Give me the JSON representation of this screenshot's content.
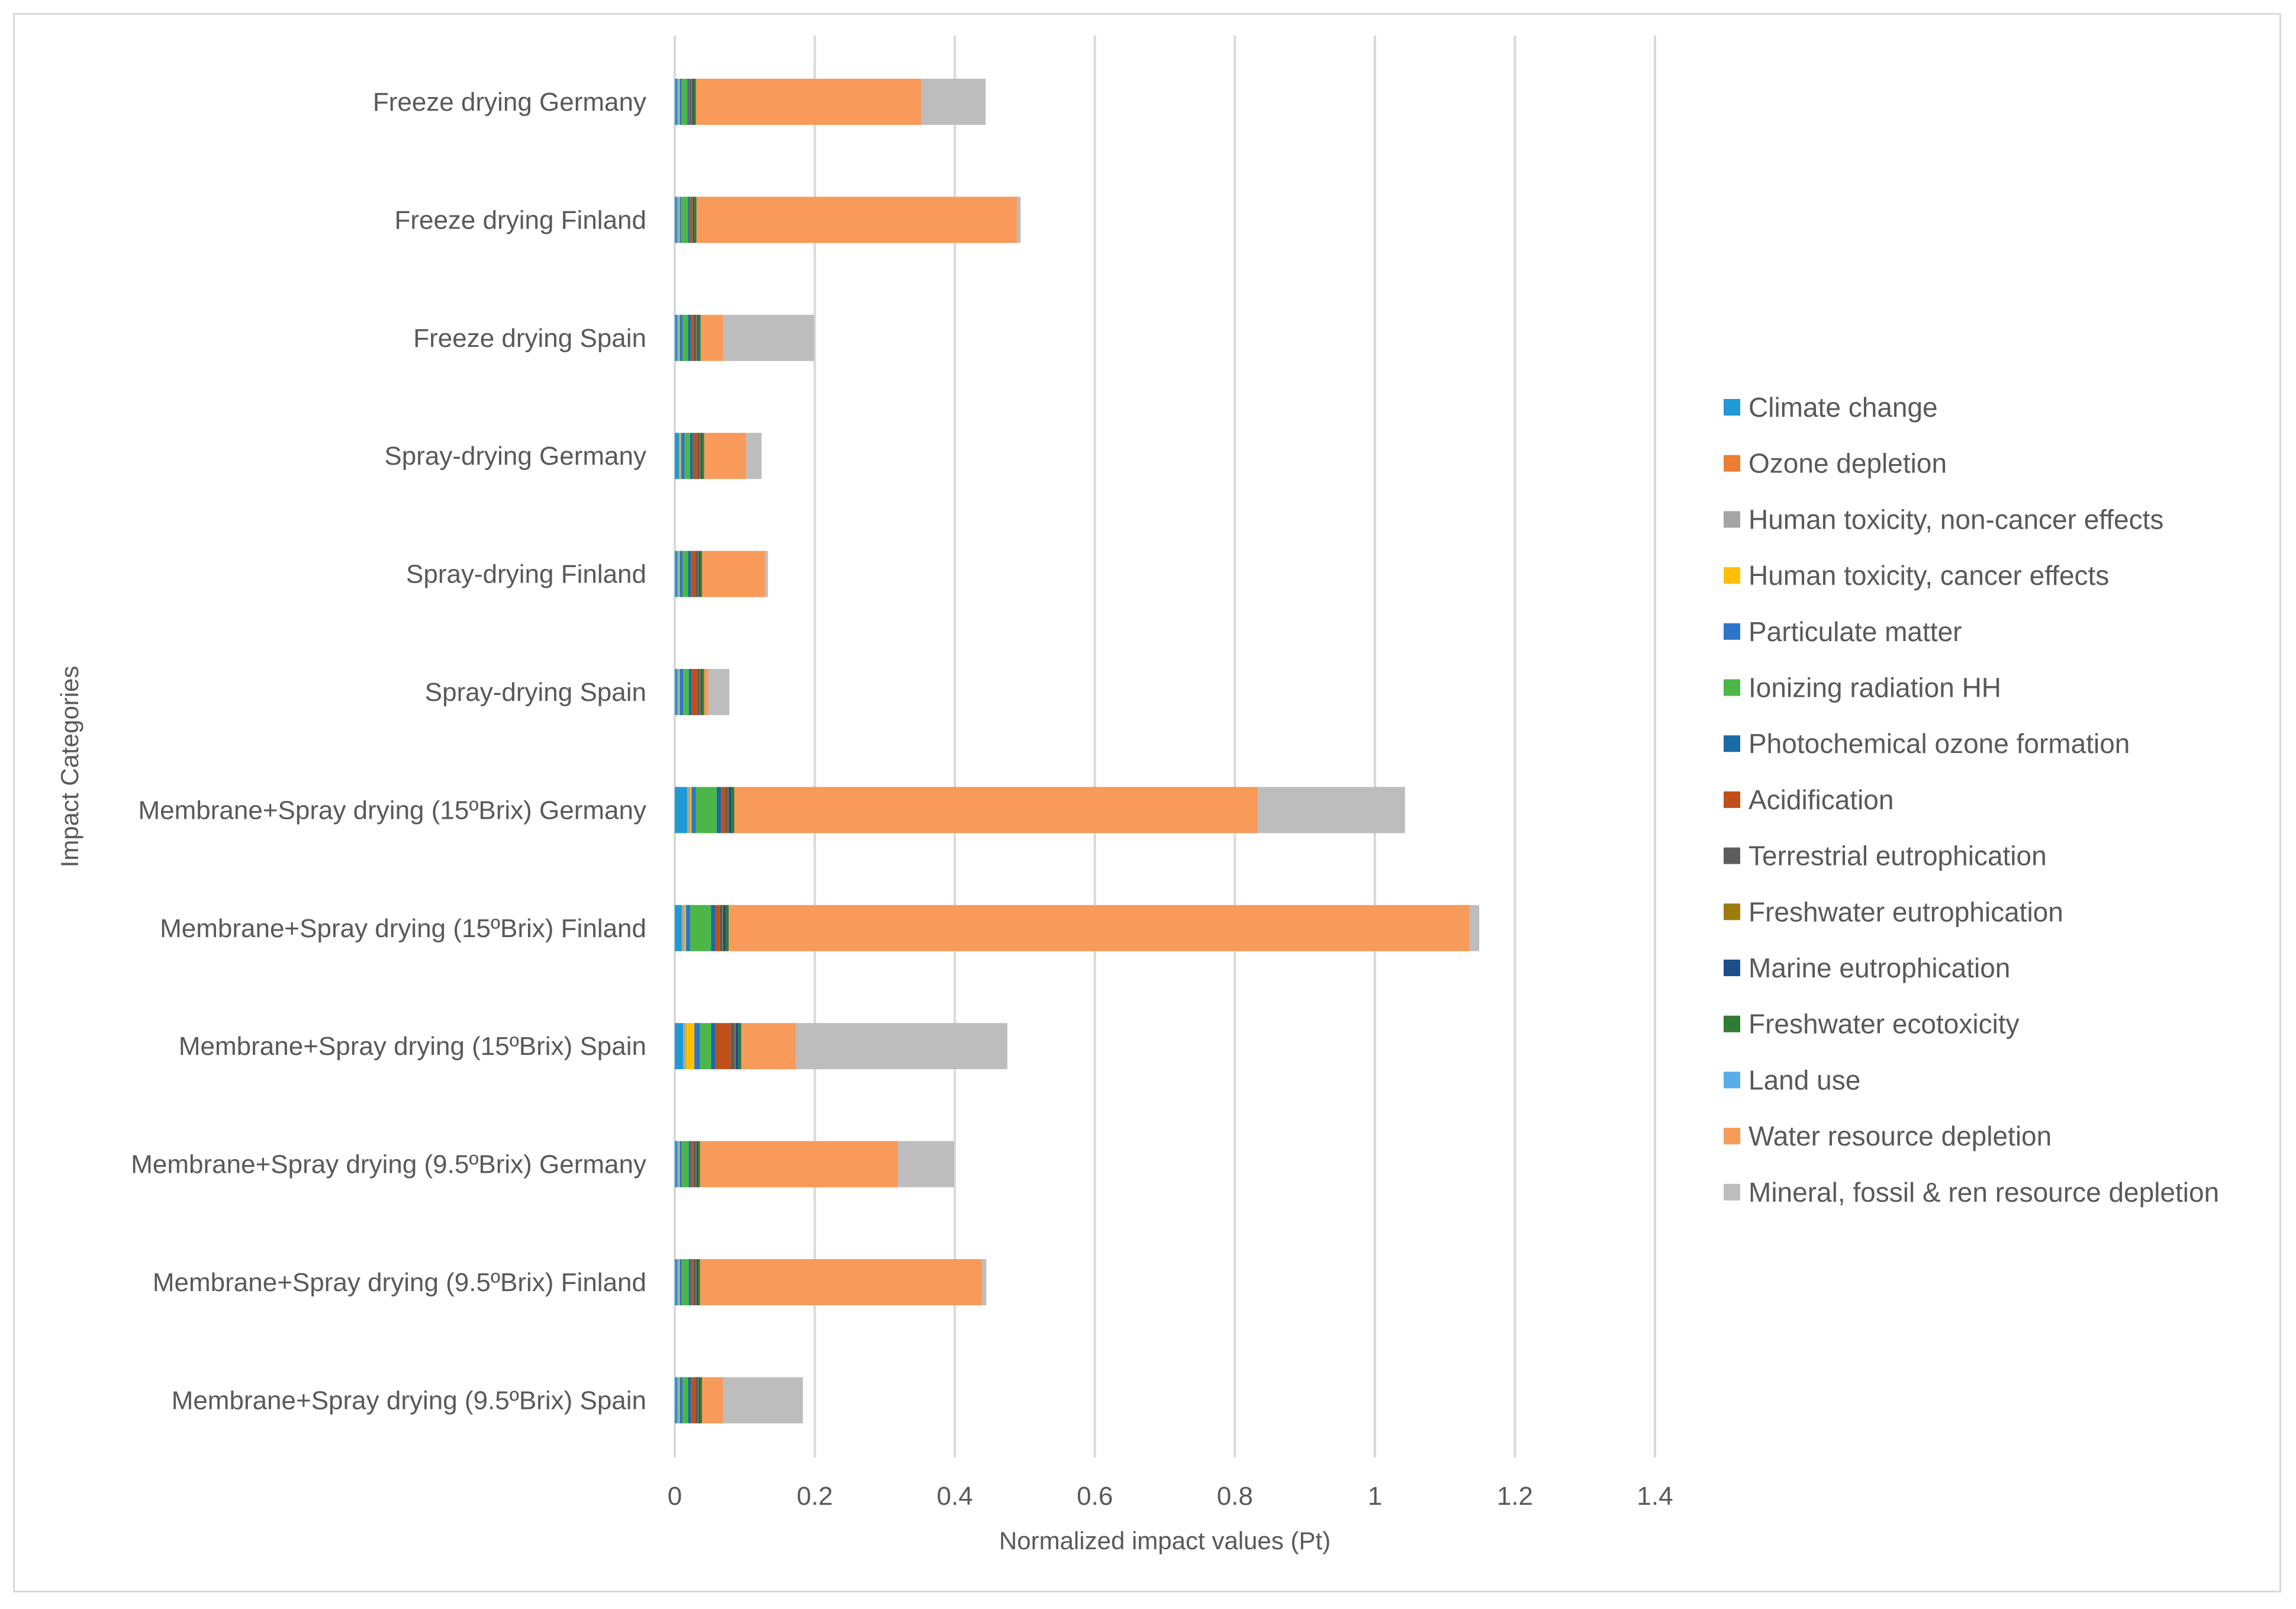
{
  "chart_data": {
    "type": "bar",
    "orientation": "horizontal",
    "stacked": true,
    "title": "",
    "xlabel": "Normalized impact values (Pt)",
    "ylabel": "Impact Categories",
    "xlim": [
      0,
      1.4
    ],
    "xticks": [
      "0",
      "0.2",
      "0.4",
      "0.6",
      "0.8",
      "1",
      "1.2",
      "1.4"
    ],
    "xtick_values": [
      0,
      0.2,
      0.4,
      0.6,
      0.8,
      1.0,
      1.2,
      1.4
    ],
    "grid": true,
    "legend_position": "right",
    "categories": [
      "Freeze drying Germany",
      "Freeze drying Finland",
      "Freeze drying Spain",
      "Spray-drying Germany",
      "Spray-drying Finland",
      "Spray-drying Spain",
      "Membrane+Spray drying (15ºBrix) Germany",
      "Membrane+Spray drying (15ºBrix) Finland",
      "Membrane+Spray drying (15ºBrix) Spain",
      "Membrane+Spray drying (9.5ºBrix) Germany",
      "Membrane+Spray drying (9.5ºBrix) Finland",
      "Membrane+Spray drying (9.5ºBrix) Spain"
    ],
    "series": [
      {
        "name": "Climate change",
        "color": "#1f9ad6",
        "values": [
          0.004,
          0.004,
          0.004,
          0.006,
          0.004,
          0.004,
          0.018,
          0.01,
          0.012,
          0.004,
          0.004,
          0.004
        ]
      },
      {
        "name": "Ozone depletion",
        "color": "#ed7d31",
        "values": [
          0.0,
          0.0,
          0.0,
          0.0,
          0.0,
          0.0,
          0.0,
          0.0,
          0.0,
          0.0,
          0.0,
          0.0
        ]
      },
      {
        "name": "Human toxicity, non-cancer effects",
        "color": "#a5a5a5",
        "values": [
          0.002,
          0.002,
          0.002,
          0.002,
          0.002,
          0.002,
          0.004,
          0.004,
          0.004,
          0.002,
          0.002,
          0.002
        ]
      },
      {
        "name": "Human toxicity, cancer effects",
        "color": "#ffc000",
        "values": [
          0.001,
          0.001,
          0.001,
          0.001,
          0.001,
          0.001,
          0.002,
          0.002,
          0.012,
          0.001,
          0.001,
          0.001
        ]
      },
      {
        "name": "Particulate matter",
        "color": "#2e75c9",
        "values": [
          0.003,
          0.002,
          0.004,
          0.005,
          0.004,
          0.005,
          0.006,
          0.006,
          0.008,
          0.003,
          0.003,
          0.004
        ]
      },
      {
        "name": "Ionizing radiation HH",
        "color": "#4cb748",
        "values": [
          0.008,
          0.01,
          0.008,
          0.008,
          0.008,
          0.008,
          0.03,
          0.03,
          0.016,
          0.01,
          0.01,
          0.008
        ]
      },
      {
        "name": "Photochemical ozone formation",
        "color": "#1a6aa8",
        "values": [
          0.002,
          0.002,
          0.004,
          0.004,
          0.004,
          0.004,
          0.006,
          0.006,
          0.006,
          0.003,
          0.003,
          0.004
        ]
      },
      {
        "name": "Acidification",
        "color": "#c0501a",
        "values": [
          0.002,
          0.002,
          0.004,
          0.006,
          0.006,
          0.008,
          0.006,
          0.006,
          0.022,
          0.004,
          0.004,
          0.006
        ]
      },
      {
        "name": "Terrestrial eutrophication",
        "color": "#5d5d5d",
        "values": [
          0.002,
          0.002,
          0.004,
          0.004,
          0.004,
          0.004,
          0.004,
          0.004,
          0.006,
          0.003,
          0.003,
          0.004
        ]
      },
      {
        "name": "Freshwater eutrophication",
        "color": "#9e7b0f",
        "values": [
          0.001,
          0.001,
          0.001,
          0.001,
          0.001,
          0.001,
          0.001,
          0.001,
          0.001,
          0.001,
          0.001,
          0.001
        ]
      },
      {
        "name": "Marine eutrophication",
        "color": "#1b4f8a",
        "values": [
          0.002,
          0.002,
          0.002,
          0.002,
          0.002,
          0.002,
          0.004,
          0.004,
          0.004,
          0.002,
          0.002,
          0.002
        ]
      },
      {
        "name": "Freshwater ecotoxicity",
        "color": "#2e7d32",
        "values": [
          0.003,
          0.003,
          0.003,
          0.003,
          0.003,
          0.003,
          0.004,
          0.004,
          0.004,
          0.003,
          0.003,
          0.003
        ]
      },
      {
        "name": "Land use",
        "color": "#5aaee8",
        "values": [
          0.0,
          0.0,
          0.0,
          0.0,
          0.0,
          0.0,
          0.0,
          0.0,
          0.0,
          0.0,
          0.0,
          0.0
        ]
      },
      {
        "name": "Water resource depletion",
        "color": "#f79a5a",
        "values": [
          0.322,
          0.458,
          0.032,
          0.06,
          0.09,
          0.006,
          0.748,
          1.058,
          0.078,
          0.283,
          0.403,
          0.03
        ]
      },
      {
        "name": "Mineral, fossil & ren resource depletion",
        "color": "#bdbdbd",
        "values": [
          0.092,
          0.005,
          0.13,
          0.022,
          0.004,
          0.03,
          0.21,
          0.014,
          0.302,
          0.08,
          0.006,
          0.114
        ]
      }
    ]
  }
}
